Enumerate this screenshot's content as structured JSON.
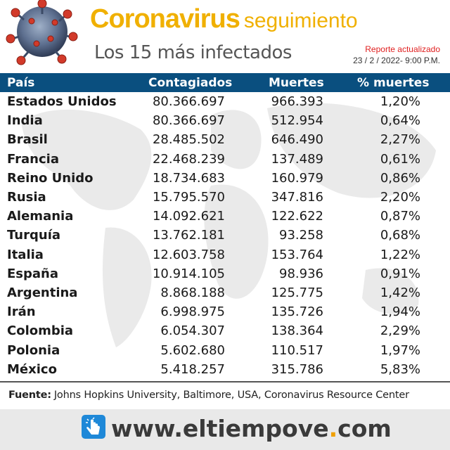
{
  "header": {
    "title_main": "Coronavirus",
    "title_sub": "seguimiento",
    "subtitle": "Los 15 más infectados",
    "report_label": "Reporte actualizado",
    "report_date": "23 / 2 / 2022-   9:00 P.M."
  },
  "table": {
    "headers": [
      "País",
      "Contagiados",
      "Muertes",
      "% muertes"
    ],
    "rows": [
      [
        "Estados Unidos",
        "80.366.697",
        "966.393",
        "1,20%"
      ],
      [
        "India",
        "80.366.697",
        "512.954",
        "0,64%"
      ],
      [
        "Brasil",
        "28.485.502",
        "646.490",
        "2,27%"
      ],
      [
        "Francia",
        "22.468.239",
        "137.489",
        "0,61%"
      ],
      [
        "Reino Unido",
        "18.734.683",
        "160.979",
        "0,86%"
      ],
      [
        "Rusia",
        "15.795.570",
        "347.816",
        "2,20%"
      ],
      [
        "Alemania",
        "14.092.621",
        "122.622",
        "0,87%"
      ],
      [
        "Turquía",
        "13.762.181",
        "93.258",
        "0,68%"
      ],
      [
        "Italia",
        "12.603.758",
        "153.764",
        "1,22%"
      ],
      [
        "España",
        "10.914.105",
        "98.936",
        "0,91%"
      ],
      [
        "Argentina",
        "8.868.188",
        "125.775",
        "1,42%"
      ],
      [
        "Irán",
        "6.998.975",
        "135.726",
        "1,94%"
      ],
      [
        "Colombia",
        "6.054.307",
        "138.364",
        "2,29%"
      ],
      [
        "Polonia",
        "5.602.680",
        "110.517",
        "1,97%"
      ],
      [
        "México",
        "5.418.257",
        "315.786",
        "5,83%"
      ]
    ]
  },
  "source": {
    "label": "Fuente:",
    "text": "Johns Hopkins University, Baltimore, USA, Coronavirus Resource Center"
  },
  "footer": {
    "site_prefix": "www.",
    "site_name_a": "eltiempove",
    "site_dot": ".",
    "site_tld": "com"
  },
  "colors": {
    "accent": "#f0b000",
    "header_bar": "#0a4f7f",
    "report_red": "#e02020"
  }
}
